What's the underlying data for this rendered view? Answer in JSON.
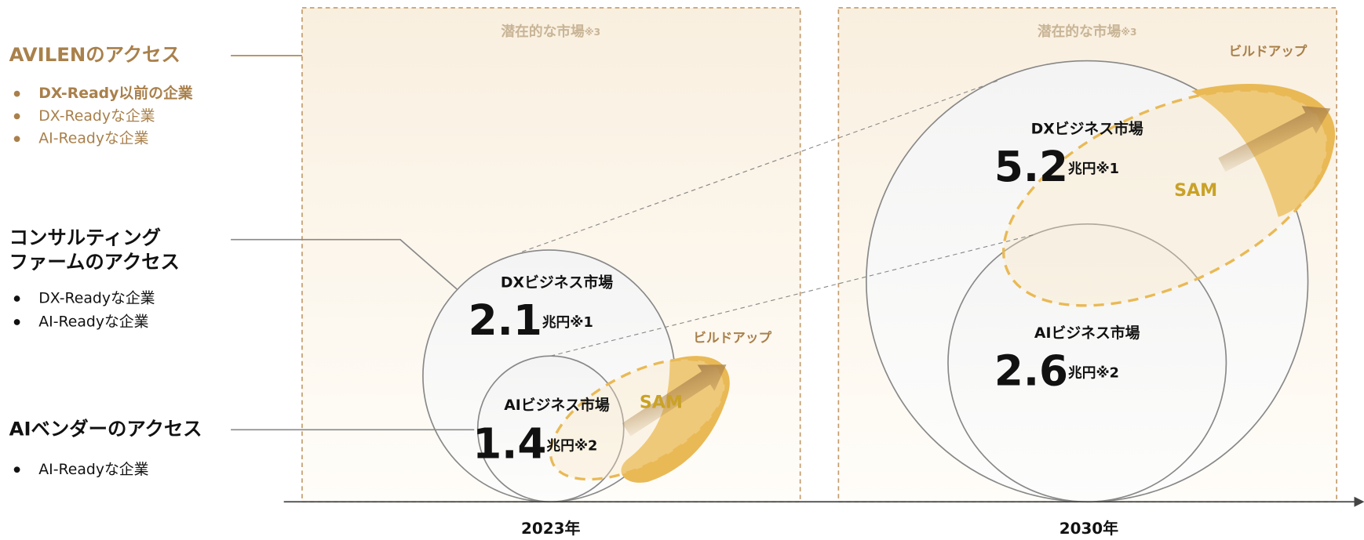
{
  "left": [
    {
      "title": [
        "AVILENのアクセス"
      ],
      "items": [
        "DX-Ready以前の企業",
        "DX-Readyな企業",
        "AI-Readyな企業"
      ]
    },
    {
      "title": [
        "コンサルティング",
        "ファームのアクセス"
      ],
      "items": [
        "DX-Readyな企業",
        "AI-Readyな企業"
      ]
    },
    {
      "title": [
        "AIベンダーのアクセス"
      ],
      "items": [
        "AI-Readyな企業"
      ]
    }
  ],
  "panels": [
    {
      "label": "潜在的な市場",
      "note": "※3",
      "year": "2023年",
      "build": "ビルドアップ",
      "sam": "SAM",
      "dx": {
        "name": "DXビジネス市場",
        "value": "2.1",
        "unit": "兆円",
        "note": "※1"
      },
      "ai": {
        "name": "AIビジネス市場",
        "value": "1.4",
        "unit": "兆円",
        "note": "※2"
      }
    },
    {
      "label": "潜在的な市場",
      "note": "※3",
      "year": "2030年",
      "build": "ビルドアップ",
      "sam": "SAM",
      "dx": {
        "name": "DXビジネス市場",
        "value": "5.2",
        "unit": "兆円",
        "note": "※1"
      },
      "ai": {
        "name": "AIビジネス市場",
        "value": "2.6",
        "unit": "兆円",
        "note": "※2"
      }
    }
  ]
}
